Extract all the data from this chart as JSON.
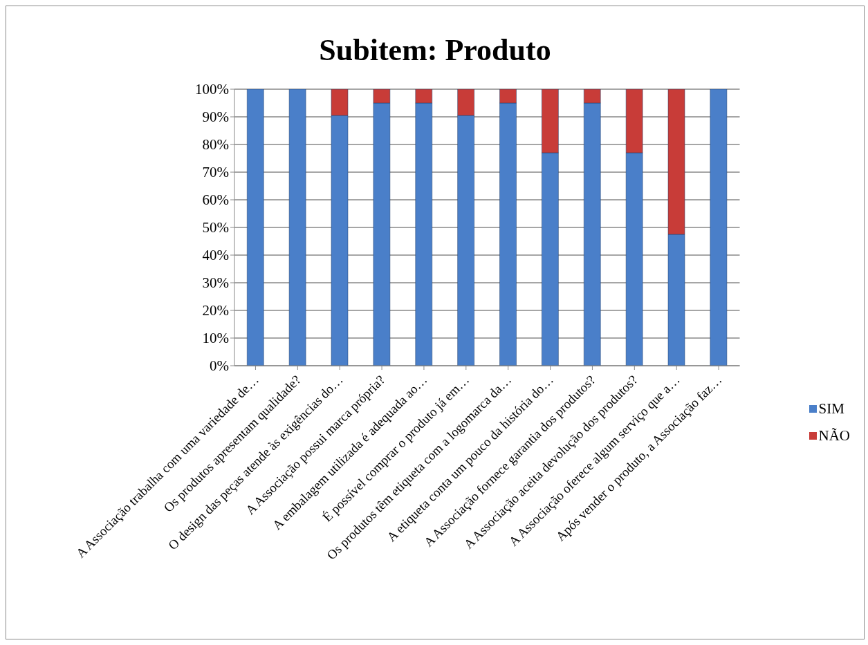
{
  "chart_data": {
    "type": "bar",
    "title": "Subitem: Produto",
    "stacked": true,
    "categories": [
      "A Associação trabalha com uma variedade de…",
      "Os produtos apresentam qualidade?",
      "O design das peças atende às exigências do…",
      "A Associação possui marca própria?",
      "A embalagem utilizada é adequada ao…",
      "É possível comprar o produto já em…",
      "Os produtos têm etiqueta com a logomarca da…",
      "A etiqueta conta um pouco da história do…",
      "A Associação fornece garantia dos produtos?",
      "A Associação aceita devolução dos produtos?",
      "A Associação oferece algum serviço que a…",
      "Após vender o produto, a Associação faz…"
    ],
    "series": [
      {
        "name": "SIM",
        "color": "#4a7fc9",
        "values": [
          100,
          100,
          90.5,
          95,
          95,
          90.5,
          95,
          77,
          95,
          77,
          47.5,
          100
        ]
      },
      {
        "name": "NÃO",
        "color": "#c83c38",
        "values": [
          0,
          0,
          9.5,
          5,
          5,
          9.5,
          5,
          23,
          5,
          23,
          52.5,
          0
        ]
      }
    ],
    "ylim": [
      0,
      100
    ],
    "yticks": [
      {
        "value": 0,
        "label": "0%"
      },
      {
        "value": 10,
        "label": "10%"
      },
      {
        "value": 20,
        "label": "20%"
      },
      {
        "value": 30,
        "label": "30%"
      },
      {
        "value": 40,
        "label": "40%"
      },
      {
        "value": 50,
        "label": "50%"
      },
      {
        "value": 60,
        "label": "60%"
      },
      {
        "value": 70,
        "label": "70%"
      },
      {
        "value": 80,
        "label": "80%"
      },
      {
        "value": 90,
        "label": "90%"
      },
      {
        "value": 100,
        "label": "100%"
      }
    ],
    "grid": "y",
    "legend": "right"
  }
}
